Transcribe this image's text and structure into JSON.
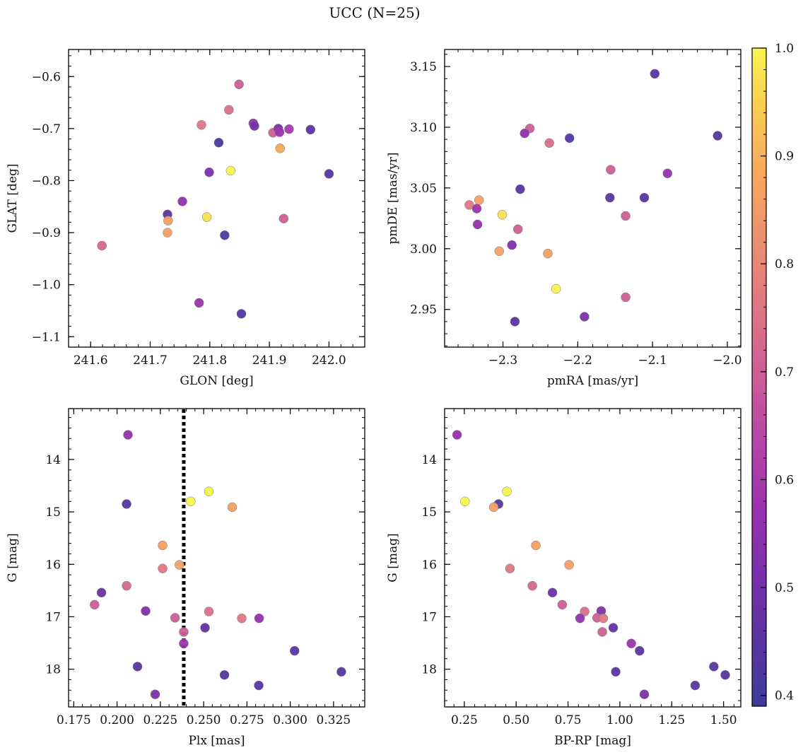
{
  "figure": {
    "title": "UCC (N=25)"
  },
  "colorbar": {
    "range": [
      0.39,
      1.0
    ],
    "ticks": [
      0.4,
      0.5,
      0.6,
      0.7,
      0.8,
      0.9,
      1.0
    ],
    "tick_labels": [
      "0.4",
      "0.5",
      "0.6",
      "0.7",
      "0.8",
      "0.9",
      "1.0"
    ],
    "colormap": "plasma"
  },
  "chart_data": [
    {
      "type": "scatter",
      "xlabel": "GLON [deg]",
      "ylabel": "GLAT [deg]",
      "xlim": [
        241.563,
        242.06
      ],
      "ylim": [
        -1.12,
        -0.548
      ],
      "y_inverted": false,
      "xticks": [
        241.6,
        241.7,
        241.8,
        241.9,
        242.0
      ],
      "xtick_labels": [
        "241.6",
        "241.7",
        "241.8",
        "241.9",
        "242.0"
      ],
      "yticks": [
        -0.6,
        -0.7,
        -0.8,
        -0.9,
        -1.0,
        -1.1
      ],
      "ytick_labels": [
        "−0.6",
        "−0.7",
        "−0.8",
        "−0.9",
        "−1.0",
        "−1.1"
      ],
      "points": [
        {
          "x": 241.849,
          "y": -0.615,
          "c": 0.7
        },
        {
          "x": 241.832,
          "y": -0.664,
          "c": 0.74
        },
        {
          "x": 241.786,
          "y": -0.693,
          "c": 0.76
        },
        {
          "x": 241.873,
          "y": -0.69,
          "c": 0.56
        },
        {
          "x": 241.875,
          "y": -0.695,
          "c": 0.5
        },
        {
          "x": 241.906,
          "y": -0.708,
          "c": 0.7
        },
        {
          "x": 241.915,
          "y": -0.7,
          "c": 0.52
        },
        {
          "x": 241.917,
          "y": -0.707,
          "c": 0.58
        },
        {
          "x": 241.933,
          "y": -0.701,
          "c": 0.6
        },
        {
          "x": 241.969,
          "y": -0.702,
          "c": 0.44
        },
        {
          "x": 241.815,
          "y": -0.727,
          "c": 0.42
        },
        {
          "x": 241.918,
          "y": -0.738,
          "c": 0.88
        },
        {
          "x": 241.835,
          "y": -0.781,
          "c": 1.0
        },
        {
          "x": 241.799,
          "y": -0.784,
          "c": 0.52
        },
        {
          "x": 242.0,
          "y": -0.787,
          "c": 0.44
        },
        {
          "x": 241.754,
          "y": -0.84,
          "c": 0.56
        },
        {
          "x": 241.729,
          "y": -0.865,
          "c": 0.44
        },
        {
          "x": 241.795,
          "y": -0.87,
          "c": 0.97
        },
        {
          "x": 241.73,
          "y": -0.877,
          "c": 0.86
        },
        {
          "x": 241.924,
          "y": -0.873,
          "c": 0.7
        },
        {
          "x": 241.729,
          "y": -0.9,
          "c": 0.86
        },
        {
          "x": 241.825,
          "y": -0.905,
          "c": 0.43
        },
        {
          "x": 241.619,
          "y": -0.925,
          "c": 0.72
        },
        {
          "x": 241.782,
          "y": -1.035,
          "c": 0.58
        },
        {
          "x": 241.853,
          "y": -1.056,
          "c": 0.44
        }
      ]
    },
    {
      "type": "scatter",
      "xlabel": "pmRA [mas/yr]",
      "ylabel": "pmDE [mas/yr]",
      "xlim": [
        -2.378,
        -1.982
      ],
      "ylim": [
        2.919,
        3.164
      ],
      "y_inverted": false,
      "xticks": [
        -2.3,
        -2.2,
        -2.1,
        -2.0
      ],
      "xtick_labels": [
        "−2.3",
        "−2.2",
        "−2.1",
        "−2.0"
      ],
      "yticks": [
        2.95,
        3.0,
        3.05,
        3.1,
        3.15
      ],
      "ytick_labels": [
        "2.95",
        "3.00",
        "3.05",
        "3.10",
        "3.15"
      ],
      "points": [
        {
          "x": -2.097,
          "y": 3.144,
          "c": 0.44
        },
        {
          "x": -2.264,
          "y": 3.099,
          "c": 0.7
        },
        {
          "x": -2.271,
          "y": 3.095,
          "c": 0.56
        },
        {
          "x": -2.211,
          "y": 3.091,
          "c": 0.44
        },
        {
          "x": -2.013,
          "y": 3.093,
          "c": 0.44
        },
        {
          "x": -2.238,
          "y": 3.087,
          "c": 0.74
        },
        {
          "x": -2.156,
          "y": 3.065,
          "c": 0.7
        },
        {
          "x": -2.08,
          "y": 3.062,
          "c": 0.56
        },
        {
          "x": -2.277,
          "y": 3.049,
          "c": 0.44
        },
        {
          "x": -2.157,
          "y": 3.042,
          "c": 0.44
        },
        {
          "x": -2.111,
          "y": 3.042,
          "c": 0.44
        },
        {
          "x": -2.332,
          "y": 3.04,
          "c": 0.86
        },
        {
          "x": -2.345,
          "y": 3.036,
          "c": 0.76
        },
        {
          "x": -2.335,
          "y": 3.033,
          "c": 0.58
        },
        {
          "x": -2.301,
          "y": 3.028,
          "c": 0.97
        },
        {
          "x": -2.136,
          "y": 3.027,
          "c": 0.7
        },
        {
          "x": -2.334,
          "y": 3.02,
          "c": 0.56
        },
        {
          "x": -2.28,
          "y": 3.016,
          "c": 0.7
        },
        {
          "x": -2.288,
          "y": 3.003,
          "c": 0.52
        },
        {
          "x": -2.305,
          "y": 2.998,
          "c": 0.86
        },
        {
          "x": -2.24,
          "y": 2.996,
          "c": 0.86
        },
        {
          "x": -2.229,
          "y": 2.967,
          "c": 1.0
        },
        {
          "x": -2.136,
          "y": 2.96,
          "c": 0.7
        },
        {
          "x": -2.191,
          "y": 2.944,
          "c": 0.52
        },
        {
          "x": -2.284,
          "y": 2.94,
          "c": 0.44
        }
      ]
    },
    {
      "type": "scatter",
      "xlabel": "Plx [mas]",
      "ylabel": "G [mag]",
      "xlim": [
        0.172,
        0.343
      ],
      "ylim": [
        13.03,
        18.72
      ],
      "y_inverted": true,
      "xticks": [
        0.175,
        0.2,
        0.225,
        0.25,
        0.275,
        0.3,
        0.325
      ],
      "xtick_labels": [
        "0.175",
        "0.200",
        "0.225",
        "0.250",
        "0.275",
        "0.300",
        "0.325"
      ],
      "yticks": [
        14,
        15,
        16,
        17,
        18
      ],
      "ytick_labels": [
        "14",
        "15",
        "16",
        "17",
        "18"
      ],
      "vline": {
        "x": 0.2385,
        "style": "dotted",
        "color": "#000000"
      },
      "points": [
        {
          "x": 0.2063,
          "y": 13.53,
          "c": 0.56
        },
        {
          "x": 0.253,
          "y": 14.61,
          "c": 1.0
        },
        {
          "x": 0.2425,
          "y": 14.8,
          "c": 1.0
        },
        {
          "x": 0.2055,
          "y": 14.85,
          "c": 0.44
        },
        {
          "x": 0.2665,
          "y": 14.91,
          "c": 0.86
        },
        {
          "x": 0.2263,
          "y": 15.64,
          "c": 0.86
        },
        {
          "x": 0.236,
          "y": 16.01,
          "c": 0.86
        },
        {
          "x": 0.2263,
          "y": 16.08,
          "c": 0.76
        },
        {
          "x": 0.2055,
          "y": 16.41,
          "c": 0.72
        },
        {
          "x": 0.191,
          "y": 16.54,
          "c": 0.48
        },
        {
          "x": 0.187,
          "y": 16.77,
          "c": 0.7
        },
        {
          "x": 0.2165,
          "y": 16.89,
          "c": 0.52
        },
        {
          "x": 0.253,
          "y": 16.9,
          "c": 0.74
        },
        {
          "x": 0.2335,
          "y": 17.02,
          "c": 0.7
        },
        {
          "x": 0.272,
          "y": 17.03,
          "c": 0.76
        },
        {
          "x": 0.282,
          "y": 17.03,
          "c": 0.56
        },
        {
          "x": 0.2508,
          "y": 17.21,
          "c": 0.46
        },
        {
          "x": 0.2385,
          "y": 17.29,
          "c": 0.7
        },
        {
          "x": 0.2385,
          "y": 17.51,
          "c": 0.58
        },
        {
          "x": 0.3025,
          "y": 17.65,
          "c": 0.44
        },
        {
          "x": 0.2118,
          "y": 17.95,
          "c": 0.44
        },
        {
          "x": 0.3295,
          "y": 18.05,
          "c": 0.44
        },
        {
          "x": 0.262,
          "y": 18.11,
          "c": 0.44
        },
        {
          "x": 0.2818,
          "y": 18.31,
          "c": 0.44
        },
        {
          "x": 0.222,
          "y": 18.48,
          "c": 0.52
        }
      ]
    },
    {
      "type": "scatter",
      "xlabel": "BP-RP [mag]",
      "ylabel": "G [mag]",
      "xlim": [
        0.155,
        1.583
      ],
      "ylim": [
        13.03,
        18.72
      ],
      "y_inverted": true,
      "xticks": [
        0.25,
        0.5,
        0.75,
        1.0,
        1.25,
        1.5
      ],
      "xtick_labels": [
        "0.25",
        "0.50",
        "0.75",
        "1.00",
        "1.25",
        "1.50"
      ],
      "yticks": [
        14,
        15,
        16,
        17,
        18
      ],
      "ytick_labels": [
        "14",
        "15",
        "16",
        "17",
        "18"
      ],
      "points": [
        {
          "x": 0.215,
          "y": 13.53,
          "c": 0.56
        },
        {
          "x": 0.455,
          "y": 14.61,
          "c": 1.0
        },
        {
          "x": 0.253,
          "y": 14.8,
          "c": 1.0
        },
        {
          "x": 0.415,
          "y": 14.85,
          "c": 0.44
        },
        {
          "x": 0.392,
          "y": 14.91,
          "c": 0.86
        },
        {
          "x": 0.595,
          "y": 15.64,
          "c": 0.86
        },
        {
          "x": 0.755,
          "y": 16.01,
          "c": 0.86
        },
        {
          "x": 0.47,
          "y": 16.08,
          "c": 0.76
        },
        {
          "x": 0.578,
          "y": 16.41,
          "c": 0.72
        },
        {
          "x": 0.675,
          "y": 16.54,
          "c": 0.48
        },
        {
          "x": 0.722,
          "y": 16.77,
          "c": 0.7
        },
        {
          "x": 0.91,
          "y": 16.89,
          "c": 0.52
        },
        {
          "x": 0.83,
          "y": 16.9,
          "c": 0.74
        },
        {
          "x": 0.89,
          "y": 17.02,
          "c": 0.7
        },
        {
          "x": 0.92,
          "y": 17.03,
          "c": 0.76
        },
        {
          "x": 0.808,
          "y": 17.03,
          "c": 0.56
        },
        {
          "x": 0.968,
          "y": 17.21,
          "c": 0.46
        },
        {
          "x": 0.915,
          "y": 17.29,
          "c": 0.7
        },
        {
          "x": 1.055,
          "y": 17.51,
          "c": 0.58
        },
        {
          "x": 1.095,
          "y": 17.65,
          "c": 0.44
        },
        {
          "x": 1.453,
          "y": 17.95,
          "c": 0.44
        },
        {
          "x": 0.98,
          "y": 18.05,
          "c": 0.44
        },
        {
          "x": 1.508,
          "y": 18.11,
          "c": 0.44
        },
        {
          "x": 1.363,
          "y": 18.31,
          "c": 0.44
        },
        {
          "x": 1.118,
          "y": 18.48,
          "c": 0.52
        }
      ]
    }
  ]
}
